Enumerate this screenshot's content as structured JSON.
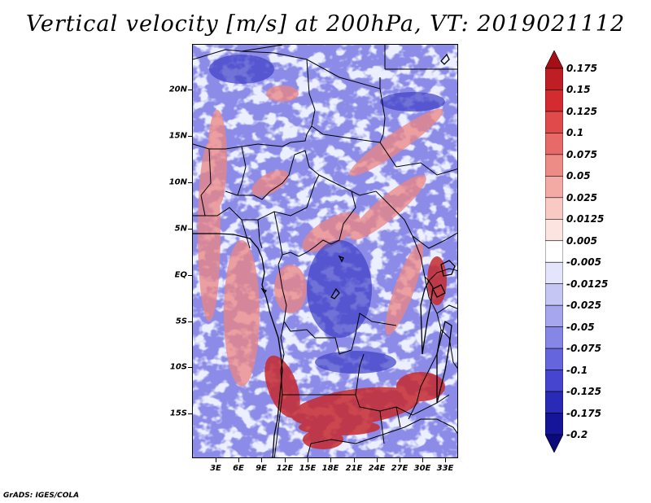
{
  "title": "Vertical velocity [m/s] at 200hPa, VT: 2019021112",
  "credit": "GrADS: IGES/COLA",
  "map": {
    "lat_labels": [
      "20N",
      "15N",
      "10N",
      "5N",
      "EQ",
      "5S",
      "10S",
      "15S"
    ],
    "lon_labels": [
      "3E",
      "6E",
      "9E",
      "12E",
      "15E",
      "18E",
      "21E",
      "24E",
      "27E",
      "30E",
      "33E"
    ]
  },
  "colorbar": {
    "labels": [
      "0.175",
      "0.15",
      "0.125",
      "0.1",
      "0.075",
      "0.05",
      "0.025",
      "0.0125",
      "0.005",
      "-0.005",
      "-0.0125",
      "-0.025",
      "-0.05",
      "-0.075",
      "-0.1",
      "-0.125",
      "-0.175",
      "-0.2"
    ],
    "colors": [
      "#a50f15",
      "#bf1e24",
      "#d42b30",
      "#e04a4a",
      "#e86a68",
      "#ef8b86",
      "#f4aaa4",
      "#f9c9c4",
      "#fce4e0",
      "#ffffff",
      "#e4e4fb",
      "#c6c6f4",
      "#a6a6ee",
      "#8686e6",
      "#6565dd",
      "#4545cf",
      "#2a2ab8",
      "#15159a",
      "#0a0a7a"
    ]
  }
}
